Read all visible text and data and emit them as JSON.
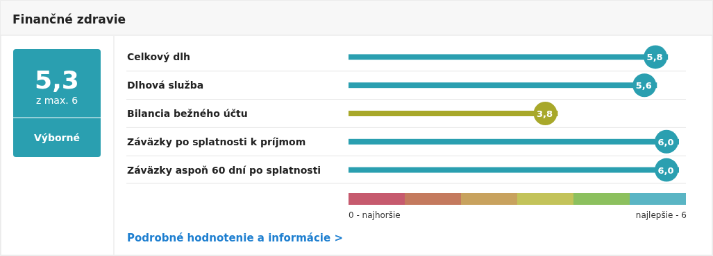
{
  "chart_data": {
    "type": "bar",
    "orientation": "horizontal",
    "title": "Finančné zdravie",
    "categories": [
      "Celkový dlh",
      "Dlhová služba",
      "Bilancia bežného účtu",
      "Záväzky po splatnosti k príjmom",
      "Záväzky aspoň 60 dní po splatnosti"
    ],
    "values": [
      5.8,
      5.6,
      3.8,
      6.0,
      6.0
    ],
    "colors": [
      "#2a9fb0",
      "#2a9fb0",
      "#a8a82a",
      "#2a9fb0",
      "#2a9fb0"
    ],
    "value_labels": [
      "5,8",
      "5,6",
      "3,8",
      "6,0",
      "6,0"
    ],
    "xlim": [
      0,
      6
    ],
    "annotations": [
      "5,3",
      "z max. 6",
      "Výborné",
      "0 - najhoršie",
      "najlepšie - 6",
      "Podrobné hodnotenie a informácie >"
    ]
  }
}
